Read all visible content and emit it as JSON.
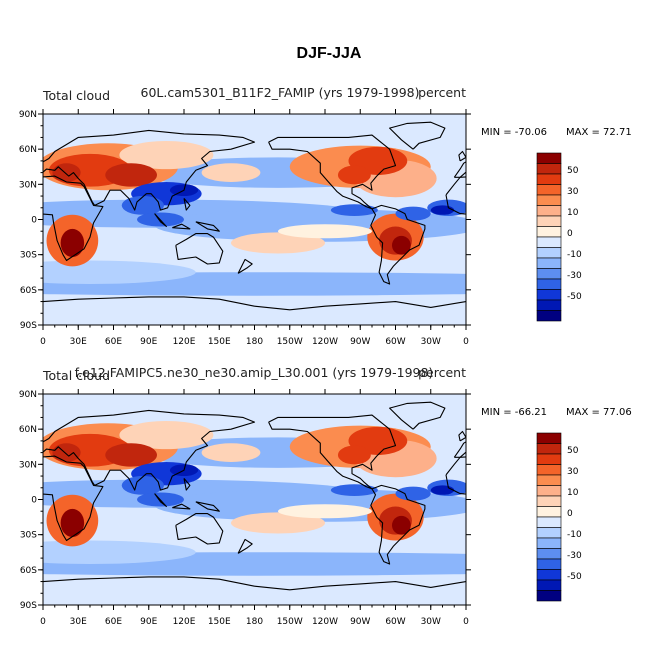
{
  "figure": {
    "title": "DJF-JJA"
  },
  "chart_data": [
    {
      "type": "heatmap",
      "panel": "top",
      "left_title": "Total cloud",
      "center_title": "60L.cam5301_B11F2_FAMIP (yrs 1979-1998)",
      "right_title": "percent",
      "min_label": "MIN = -70.06",
      "max_label": "MAX =  72.71",
      "min": -70.06,
      "max": 72.71,
      "xlim": [
        0,
        360
      ],
      "ylim": [
        -90,
        90
      ],
      "x_ticks": [
        "0",
        "30E",
        "60E",
        "90E",
        "120E",
        "150E",
        "180",
        "150W",
        "120W",
        "90W",
        "60W",
        "30W",
        "0"
      ],
      "y_ticks": [
        "90N",
        "60N",
        "30N",
        "0",
        "30S",
        "60S",
        "90S"
      ]
    },
    {
      "type": "heatmap",
      "panel": "bottom",
      "left_title": "Total cloud",
      "center_title": "f.e12.FAMIPC5.ne30_ne30.amip_L30.001 (yrs 1979-1998)",
      "right_title": "percent",
      "min_label": "MIN = -66.21",
      "max_label": "MAX =  77.06",
      "min": -66.21,
      "max": 77.06,
      "xlim": [
        0,
        360
      ],
      "ylim": [
        -90,
        90
      ],
      "x_ticks": [
        "0",
        "30E",
        "60E",
        "90E",
        "120E",
        "150E",
        "180",
        "150W",
        "120W",
        "90W",
        "60W",
        "30W",
        "0"
      ],
      "y_ticks": [
        "90N",
        "60N",
        "30N",
        "0",
        "30S",
        "60S",
        "90S"
      ]
    }
  ],
  "colorbar": {
    "labels": [
      "50",
      "30",
      "10",
      "0",
      "-10",
      "-30",
      "-50"
    ],
    "colors": [
      "#8b0000",
      "#c1260d",
      "#e23b10",
      "#f4642a",
      "#fb8c4f",
      "#fdb08a",
      "#fed3b7",
      "#fff2e0",
      "#dbe9ff",
      "#b3d1ff",
      "#8bb5fb",
      "#5d8ef0",
      "#2f63e6",
      "#1037d8",
      "#0018b4",
      "#000080"
    ]
  },
  "colors": {
    "land_outline": "#000000",
    "frame": "#000000"
  }
}
